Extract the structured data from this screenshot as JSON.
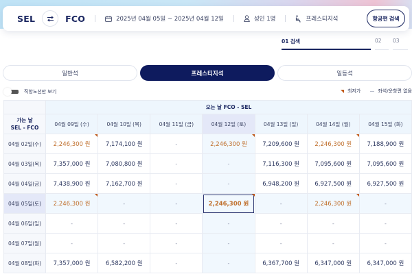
{
  "search": {
    "origin": "SEL",
    "destination": "FCO",
    "swap_icon": "swap-arrows-icon",
    "dates": "2025년 04월 05일 ~ 2025년 04월 12일",
    "passengers": "성인 1명",
    "cabin": "프레스티지석",
    "search_button": "항공편 검색"
  },
  "steps": [
    {
      "label": "01 검색",
      "active": true
    },
    {
      "label": "02",
      "active": false
    },
    {
      "label": "03",
      "active": false
    }
  ],
  "cabin_tabs": [
    {
      "label": "일반석",
      "active": false
    },
    {
      "label": "프레스티지석",
      "active": true
    },
    {
      "label": "일등석",
      "active": false
    }
  ],
  "options": {
    "direct_only_label": "직항노선만 보기",
    "legend_lowest": "최저가",
    "legend_unavailable": "좌석/운항편 없음"
  },
  "grid": {
    "return_header": "오는 날 FCO - SEL",
    "departure_header_line1": "가는 날",
    "departure_header_line2": "SEL - FCO",
    "return_dates": [
      "04월 09일 (수)",
      "04월 10일 (목)",
      "04월 11일 (금)",
      "04월 12일 (토)",
      "04월 13일 (일)",
      "04월 14일 (월)",
      "04월 15일 (화)"
    ],
    "selected_return_index": 3,
    "selected_departure_index": 3,
    "rows": [
      {
        "date": "04월 02일(수)",
        "prices": [
          "2,246,300 원",
          "7,174,100 원",
          "-",
          "2,246,300 원",
          "7,209,600 원",
          "2,246,300 원",
          "7,188,900 원"
        ],
        "lowest": [
          0,
          3,
          5
        ]
      },
      {
        "date": "04월 03일(목)",
        "prices": [
          "7,357,000 원",
          "7,080,800 원",
          "-",
          "-",
          "7,116,300 원",
          "7,095,600 원",
          "7,095,600 원"
        ],
        "lowest": []
      },
      {
        "date": "04월 04일(금)",
        "prices": [
          "7,438,900 원",
          "7,162,700 원",
          "-",
          "-",
          "6,948,200 원",
          "6,927,500 원",
          "6,927,500 원"
        ],
        "lowest": []
      },
      {
        "date": "04월 05일(토)",
        "prices": [
          "2,246,300 원",
          "-",
          "-",
          "2,246,300 원",
          "-",
          "2,246,300 원",
          "-"
        ],
        "lowest": [
          0,
          3,
          5
        ]
      },
      {
        "date": "04월 06일(일)",
        "prices": [
          "-",
          "-",
          "-",
          "-",
          "-",
          "-",
          "-"
        ],
        "lowest": []
      },
      {
        "date": "04월 07일(월)",
        "prices": [
          "-",
          "-",
          "-",
          "-",
          "-",
          "-",
          "-"
        ],
        "lowest": []
      },
      {
        "date": "04월 08일(화)",
        "prices": [
          "7,357,000 원",
          "6,582,200 원",
          "-",
          "-",
          "6,367,700 원",
          "6,347,000 원",
          "6,347,000 원"
        ],
        "lowest": []
      }
    ]
  },
  "colors": {
    "brand_navy": "#0e1b5e",
    "lowest_price": "#c0702e",
    "lowest_flag": "#c25a1a",
    "header_bg": "#eef6fd",
    "selected_bg": "#e4e8f8"
  }
}
